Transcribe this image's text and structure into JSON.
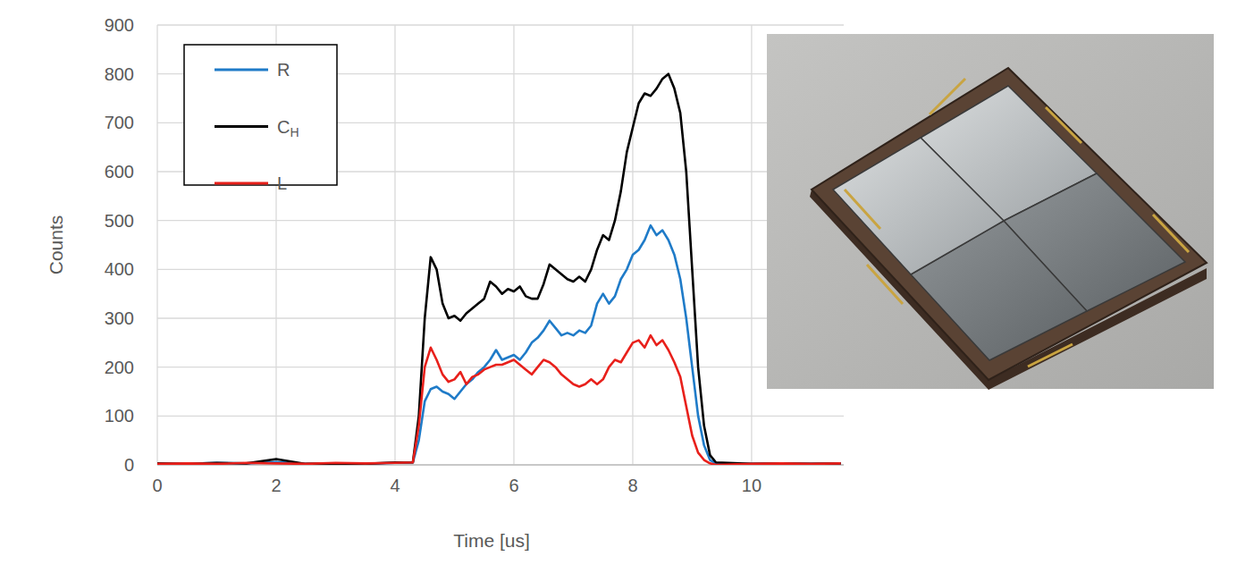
{
  "chart_data": {
    "type": "line",
    "x_label": "Time [us]",
    "y_label": "Counts",
    "x": [
      0,
      0.5,
      1,
      1.5,
      2,
      2.5,
      3,
      3.5,
      4,
      4.3,
      4.4,
      4.5,
      4.6,
      4.7,
      4.8,
      4.9,
      5.0,
      5.1,
      5.2,
      5.3,
      5.4,
      5.5,
      5.6,
      5.7,
      5.8,
      5.9,
      6.0,
      6.1,
      6.2,
      6.3,
      6.4,
      6.5,
      6.6,
      6.7,
      6.8,
      6.9,
      7.0,
      7.1,
      7.2,
      7.3,
      7.4,
      7.5,
      7.6,
      7.7,
      7.8,
      7.9,
      8.0,
      8.1,
      8.2,
      8.3,
      8.4,
      8.5,
      8.6,
      8.7,
      8.8,
      8.9,
      9.0,
      9.1,
      9.2,
      9.3,
      9.4,
      10,
      10.5,
      11,
      11.5
    ],
    "series": [
      {
        "name": "R",
        "color": "#1f7bc8",
        "values": [
          3,
          2,
          4,
          3,
          6,
          2,
          3,
          2,
          4,
          5,
          50,
          130,
          155,
          160,
          150,
          145,
          135,
          150,
          165,
          175,
          190,
          200,
          215,
          235,
          215,
          220,
          225,
          215,
          230,
          250,
          260,
          275,
          295,
          280,
          265,
          270,
          265,
          275,
          270,
          285,
          330,
          350,
          330,
          345,
          380,
          400,
          430,
          440,
          460,
          490,
          470,
          480,
          460,
          430,
          380,
          300,
          200,
          100,
          40,
          10,
          3,
          2,
          3,
          2,
          3
        ]
      },
      {
        "name": "CH",
        "color": "#000000",
        "values": [
          3,
          2,
          4,
          3,
          12,
          2,
          3,
          2,
          5,
          5,
          100,
          300,
          425,
          400,
          330,
          300,
          305,
          295,
          310,
          320,
          330,
          340,
          375,
          365,
          350,
          360,
          355,
          365,
          345,
          340,
          340,
          370,
          410,
          400,
          390,
          380,
          375,
          385,
          375,
          400,
          440,
          470,
          460,
          500,
          560,
          640,
          690,
          740,
          760,
          755,
          770,
          790,
          800,
          770,
          720,
          600,
          400,
          200,
          80,
          20,
          5,
          2,
          3,
          2,
          3
        ]
      },
      {
        "name": "L",
        "color": "#e8201b",
        "values": [
          2,
          3,
          2,
          4,
          3,
          2,
          4,
          3,
          4,
          5,
          80,
          200,
          240,
          215,
          185,
          170,
          175,
          190,
          165,
          180,
          185,
          195,
          200,
          205,
          205,
          210,
          215,
          205,
          195,
          185,
          200,
          215,
          210,
          200,
          185,
          175,
          165,
          160,
          165,
          175,
          165,
          175,
          200,
          215,
          210,
          230,
          250,
          255,
          240,
          265,
          245,
          255,
          235,
          210,
          180,
          120,
          60,
          25,
          10,
          3,
          0,
          2,
          3,
          2,
          3
        ]
      }
    ],
    "xlim": [
      0,
      11.55
    ],
    "ylim": [
      0,
      900
    ],
    "xticks": [
      0,
      2,
      4,
      6,
      8,
      10
    ],
    "yticks": [
      0,
      100,
      200,
      300,
      400,
      500,
      600,
      700,
      800,
      900
    ],
    "grid": true,
    "legend": "top-left"
  }
}
